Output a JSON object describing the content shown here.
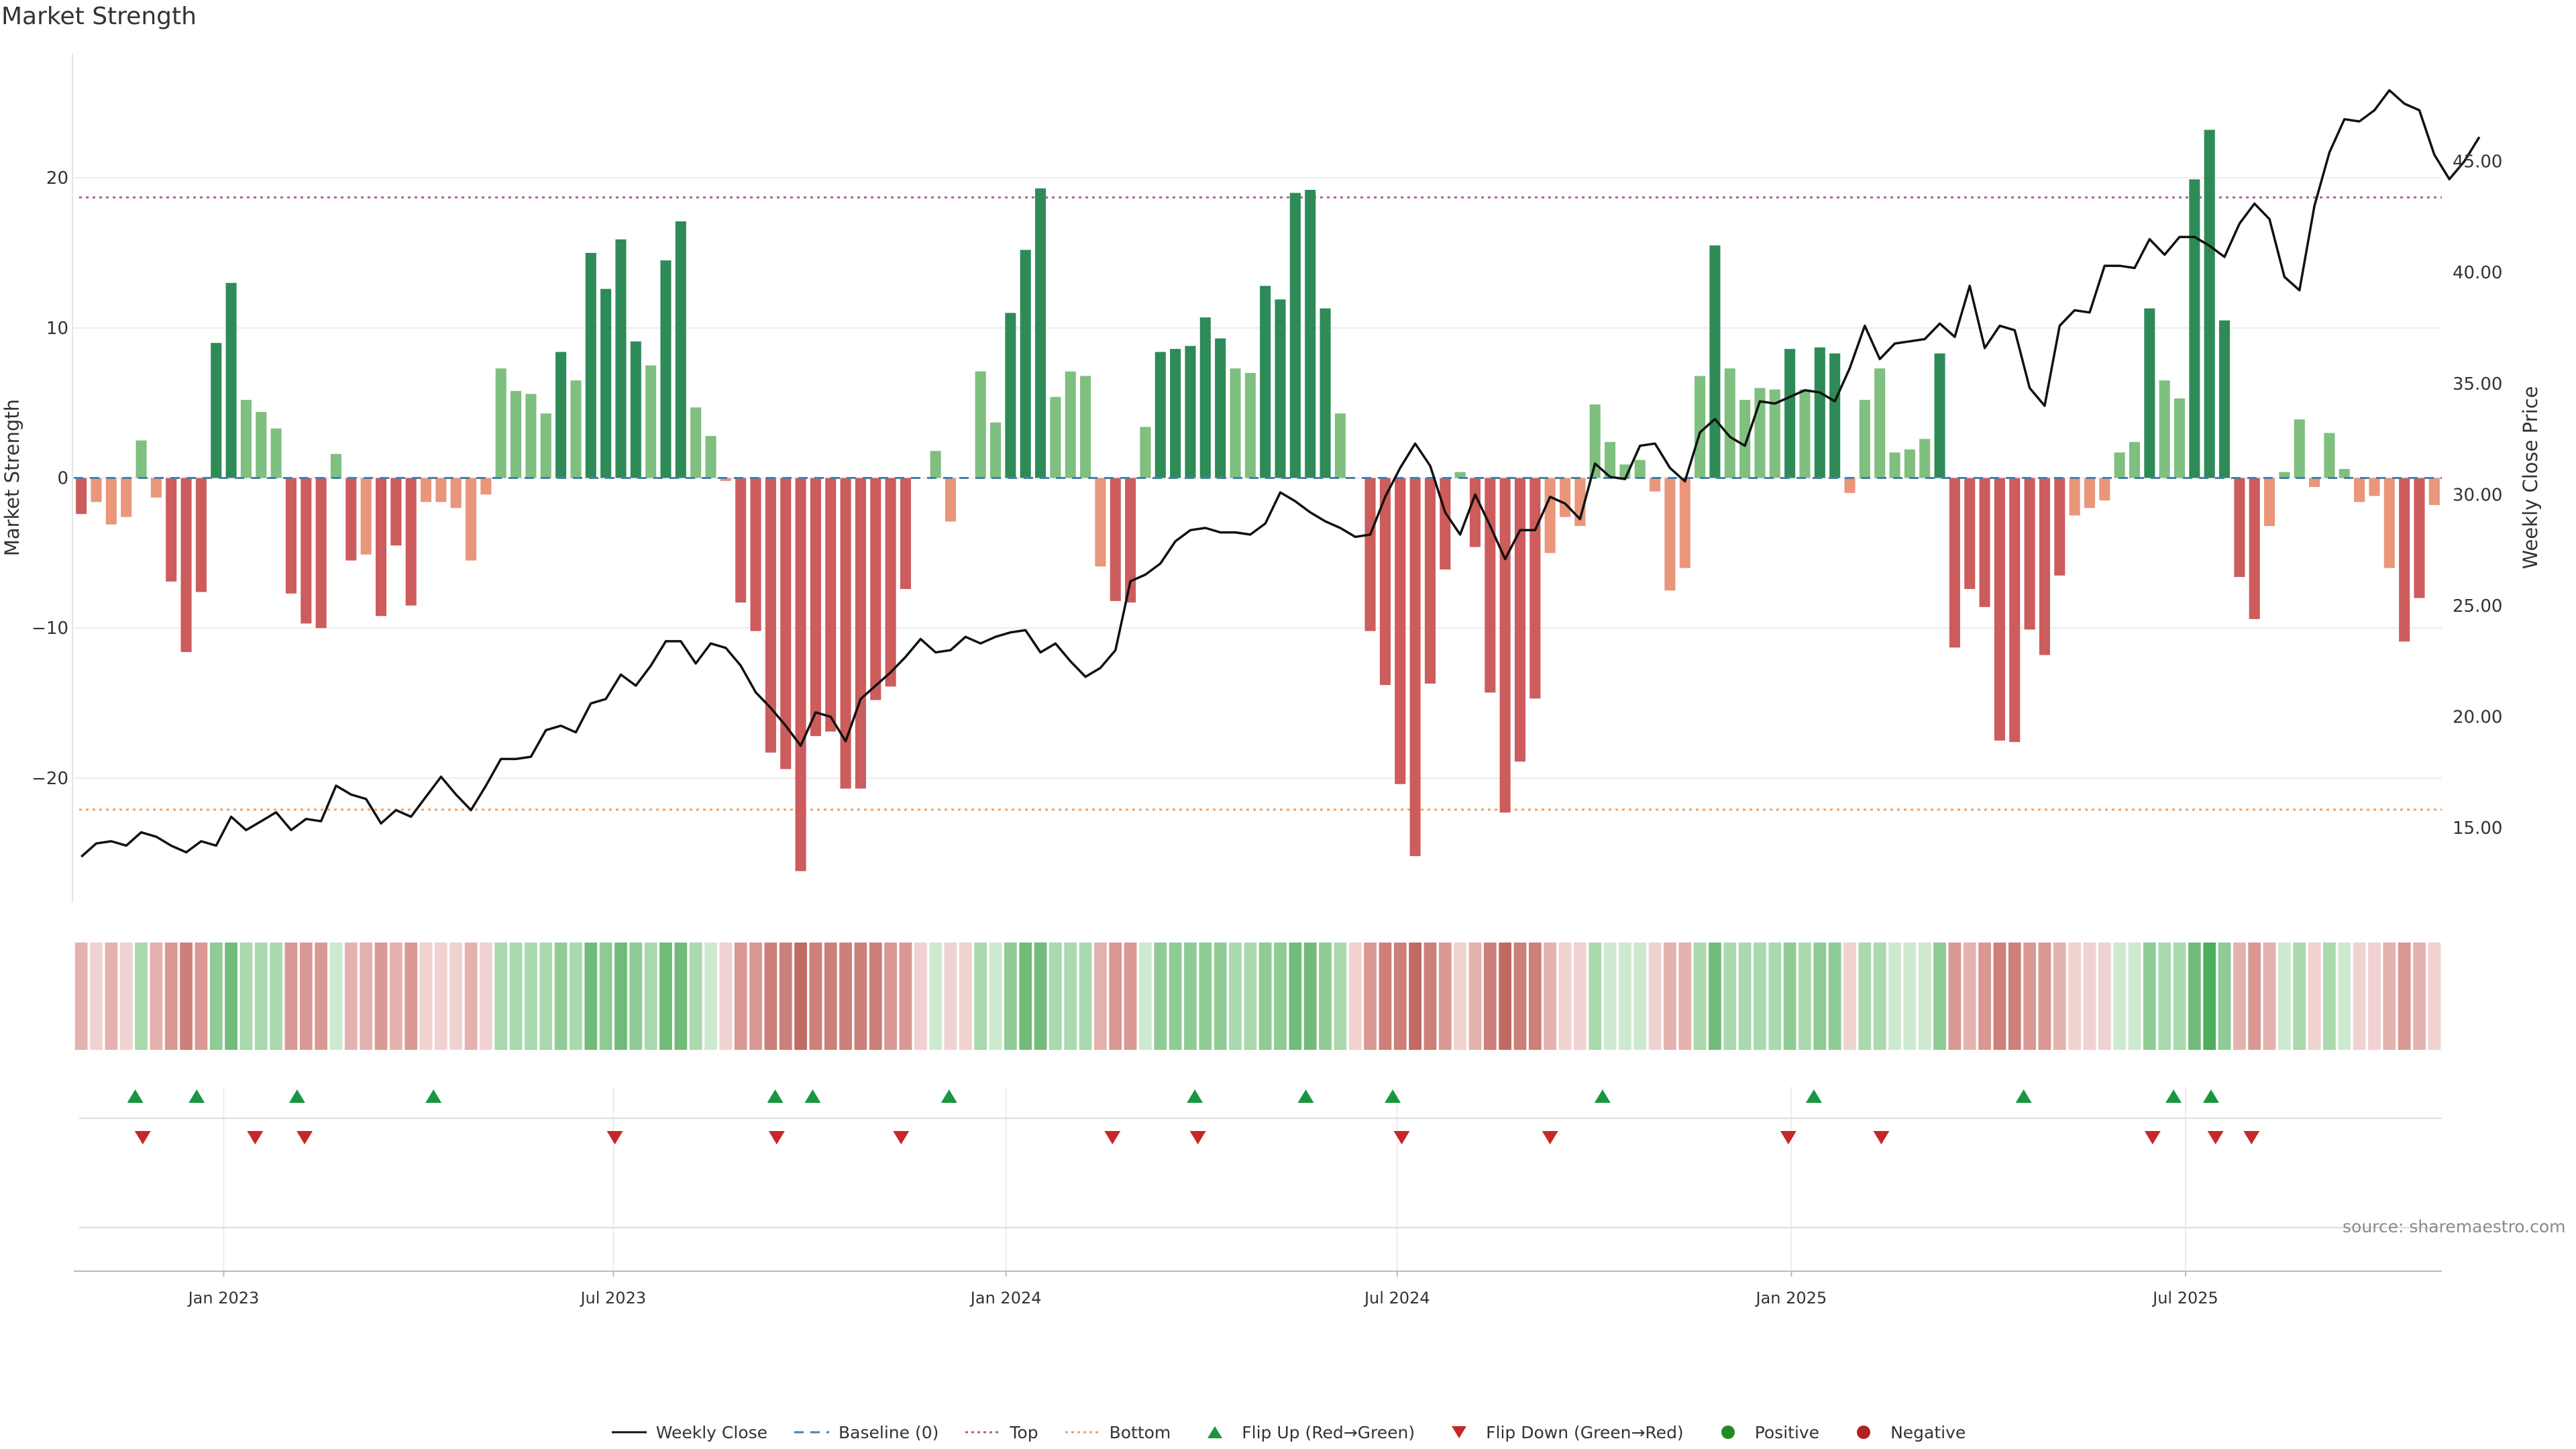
{
  "title": "Market Strength",
  "source": "source: sharemaestro.com",
  "colors": {
    "strong_green": "#2e8b57",
    "light_green": "#7fbf7f",
    "strong_red": "#cd5c5c",
    "light_red": "#e9967a",
    "price_line": "#111111",
    "baseline": "#4a7fa6",
    "top_line": "#b05aa0",
    "bottom_line": "#f0a060",
    "flip_up": "#1a9641",
    "flip_down": "#c62828",
    "positive": "#228b22",
    "negative": "#b22222"
  },
  "legend": [
    {
      "label": "Weekly Close",
      "marker": "line-solid",
      "color": "#111111"
    },
    {
      "label": "Baseline (0)",
      "marker": "line-dashed",
      "color": "#4a7fa6"
    },
    {
      "label": "Top",
      "marker": "line-dotted",
      "color": "#b05aa0"
    },
    {
      "label": "Bottom",
      "marker": "line-dotted",
      "color": "#f0a060"
    },
    {
      "label": "Flip Up (Red→Green)",
      "marker": "triangle-up",
      "color": "#1a9641"
    },
    {
      "label": "Flip Down (Green→Red)",
      "marker": "triangle-down",
      "color": "#c62828"
    },
    {
      "label": "Positive",
      "marker": "circle",
      "color": "#228b22"
    },
    {
      "label": "Negative",
      "marker": "circle",
      "color": "#b22222"
    }
  ],
  "chart_data": {
    "type": "bar",
    "ylabel": "Market Strength",
    "y2label": "Weekly Close Price",
    "ylim": [
      -28.5,
      28.5
    ],
    "y2lim": [
      11.5,
      50.0
    ],
    "yticks": [
      -20,
      -10,
      0,
      10,
      20
    ],
    "y2ticks": [
      "15.00",
      "20.00",
      "25.00",
      "30.00",
      "35.00",
      "40.00",
      "45.00"
    ],
    "xticks": [
      {
        "label": "Jan 2023",
        "week": 9.5
      },
      {
        "label": "Jul 2023",
        "week": 35.5
      },
      {
        "label": "Jan 2024",
        "week": 61.7
      },
      {
        "label": "Jul 2024",
        "week": 87.8
      },
      {
        "label": "Jan 2025",
        "week": 114.1
      },
      {
        "label": "Jul 2025",
        "week": 140.4
      }
    ],
    "top_level": 18.7,
    "bottom_level": -22.1,
    "strength": [
      -2.4,
      -1.6,
      -3.1,
      -2.6,
      2.5,
      -1.3,
      -6.9,
      -11.6,
      -7.6,
      9.0,
      13.0,
      5.2,
      4.4,
      3.3,
      -7.7,
      -9.7,
      -10.0,
      1.6,
      -5.5,
      -5.1,
      -9.2,
      -4.5,
      -8.5,
      -1.6,
      -1.6,
      -2.0,
      -5.5,
      -1.1,
      7.3,
      5.8,
      5.6,
      4.3,
      8.4,
      6.5,
      15.0,
      12.6,
      15.9,
      9.1,
      7.5,
      14.5,
      17.1,
      4.7,
      2.8,
      -0.2,
      -8.3,
      -10.2,
      -18.3,
      -19.4,
      -26.2,
      -17.2,
      -16.9,
      -20.7,
      -20.7,
      -14.8,
      -13.9,
      -7.4,
      0,
      1.8,
      -2.9,
      0,
      7.1,
      3.7,
      11.0,
      15.2,
      19.3,
      5.4,
      7.1,
      6.8,
      -5.9,
      -8.2,
      -8.3,
      3.4,
      8.4,
      8.6,
      8.8,
      10.7,
      9.3,
      7.3,
      7.0,
      12.8,
      11.9,
      19.0,
      19.2,
      11.3,
      4.3,
      0,
      -10.2,
      -13.8,
      -20.4,
      -25.2,
      -13.7,
      -6.1,
      0.4,
      -4.6,
      -14.3,
      -22.3,
      -18.9,
      -14.7,
      -5.0,
      -2.6,
      -3.2,
      4.9,
      2.4,
      0.9,
      1.2,
      -0.9,
      -7.5,
      -6.0,
      6.8,
      15.5,
      7.3,
      5.2,
      6.0,
      5.9,
      8.6,
      5.9,
      8.7,
      8.3,
      -1.0,
      5.2,
      7.3,
      1.7,
      1.9,
      2.6,
      8.3,
      -11.3,
      -7.4,
      -8.6,
      -17.5,
      -17.6,
      -10.1,
      -11.8,
      -6.5,
      -2.5,
      -2.0,
      -1.5,
      1.7,
      2.4,
      11.3,
      6.5,
      5.3,
      19.9,
      23.2,
      10.5,
      -6.6,
      -9.4,
      -3.2,
      0.4,
      3.9,
      -0.6,
      3.0,
      0.6,
      -1.6,
      -1.2,
      -6.0,
      -10.9,
      -8.0,
      -1.8
    ],
    "colors_row": [
      "R2",
      "R1",
      "R2",
      "R1",
      "G2",
      "R2",
      "R3",
      "R4",
      "R3",
      "G3",
      "G4",
      "G2",
      "G2",
      "G2",
      "R3",
      "R3",
      "R3",
      "G1",
      "R2",
      "R2",
      "R3",
      "R2",
      "R3",
      "R1",
      "R1",
      "R1",
      "R2",
      "R1",
      "G2",
      "G2",
      "G2",
      "G2",
      "G3",
      "G2",
      "G4",
      "G3",
      "G4",
      "G3",
      "G2",
      "G4",
      "G4",
      "G2",
      "G1",
      "R1",
      "R3",
      "R3",
      "R4",
      "R4",
      "R5",
      "R4",
      "R4",
      "R4",
      "R4",
      "R4",
      "R3",
      "R3",
      "R1",
      "G1",
      "R1",
      "R1",
      "G2",
      "G1",
      "G3",
      "G4",
      "G4",
      "G2",
      "G2",
      "G2",
      "R2",
      "R3",
      "R3",
      "G1",
      "G3",
      "G3",
      "G3",
      "G3",
      "G3",
      "G2",
      "G2",
      "G3",
      "G3",
      "G4",
      "G4",
      "G3",
      "G2",
      "R1",
      "R3",
      "R4",
      "R4",
      "R5",
      "R4",
      "R3",
      "R1",
      "R2",
      "R4",
      "R5",
      "R4",
      "R4",
      "R2",
      "R1",
      "R1",
      "G2",
      "G1",
      "G1",
      "G1",
      "R1",
      "R2",
      "R2",
      "G2",
      "G4",
      "G2",
      "G2",
      "G2",
      "G2",
      "G3",
      "G2",
      "G3",
      "G3",
      "R1",
      "G2",
      "G2",
      "G1",
      "G1",
      "G1",
      "G3",
      "R3",
      "R2",
      "R3",
      "R4",
      "R4",
      "R3",
      "R3",
      "R2",
      "R1",
      "R1",
      "R1",
      "G1",
      "G1",
      "G3",
      "G2",
      "G2",
      "G4",
      "G5",
      "G3",
      "R2",
      "R3",
      "R2",
      "G1",
      "G2",
      "R1",
      "G2",
      "G1",
      "R1",
      "R1",
      "R2",
      "R3",
      "R2",
      "R1"
    ],
    "price": [
      13.7,
      14.3,
      14.4,
      14.2,
      14.8,
      14.6,
      14.2,
      13.9,
      14.4,
      14.2,
      15.5,
      14.9,
      15.3,
      15.7,
      14.9,
      15.4,
      15.3,
      16.9,
      16.5,
      16.3,
      15.2,
      15.8,
      15.5,
      16.4,
      17.3,
      16.5,
      15.8,
      16.9,
      18.1,
      18.1,
      18.2,
      19.4,
      19.6,
      19.3,
      20.6,
      20.8,
      21.9,
      21.4,
      22.3,
      23.4,
      23.4,
      22.4,
      23.3,
      23.1,
      22.3,
      21.1,
      20.4,
      19.6,
      18.7,
      20.2,
      20.0,
      18.9,
      20.8,
      21.4,
      22.0,
      22.7,
      23.5,
      22.9,
      23.0,
      23.6,
      23.3,
      23.6,
      23.8,
      23.9,
      22.9,
      23.3,
      22.5,
      21.8,
      22.2,
      23.0,
      26.1,
      26.4,
      26.9,
      27.9,
      28.4,
      28.5,
      28.3,
      28.3,
      28.2,
      28.7,
      30.1,
      29.7,
      29.2,
      28.8,
      28.5,
      28.1,
      28.2,
      29.9,
      31.2,
      32.3,
      31.3,
      29.2,
      28.2,
      30.0,
      28.6,
      27.1,
      28.4,
      28.4,
      29.9,
      29.6,
      28.9,
      31.4,
      30.8,
      30.7,
      32.2,
      32.3,
      31.2,
      30.6,
      32.8,
      33.4,
      32.6,
      32.2,
      34.2,
      34.1,
      34.4,
      34.7,
      34.6,
      34.2,
      35.7,
      37.6,
      36.1,
      36.8,
      36.9,
      37.0,
      37.7,
      37.1,
      39.4,
      36.6,
      37.6,
      37.4,
      34.8,
      34.0,
      37.6,
      38.3,
      38.2,
      40.3,
      40.3,
      40.2,
      41.5,
      40.8,
      41.6,
      41.6,
      41.2,
      40.7,
      42.2,
      43.1,
      42.4,
      39.8,
      39.2,
      43.0,
      45.4,
      46.9,
      46.8,
      47.3,
      48.2,
      47.6,
      47.3,
      45.3,
      44.2,
      45.0,
      46.1
    ],
    "flip_up_weeks": [
      3.6,
      7.7,
      14.4,
      23.5,
      46.3,
      48.8,
      57.9,
      74.3,
      81.7,
      87.5,
      101.5,
      115.6,
      129.6,
      139.6,
      142.1
    ],
    "flip_down_weeks": [
      4.1,
      11.6,
      14.9,
      35.6,
      46.4,
      54.7,
      68.8,
      74.5,
      88.1,
      98.0,
      113.9,
      120.1,
      138.2,
      142.4,
      144.8
    ]
  }
}
